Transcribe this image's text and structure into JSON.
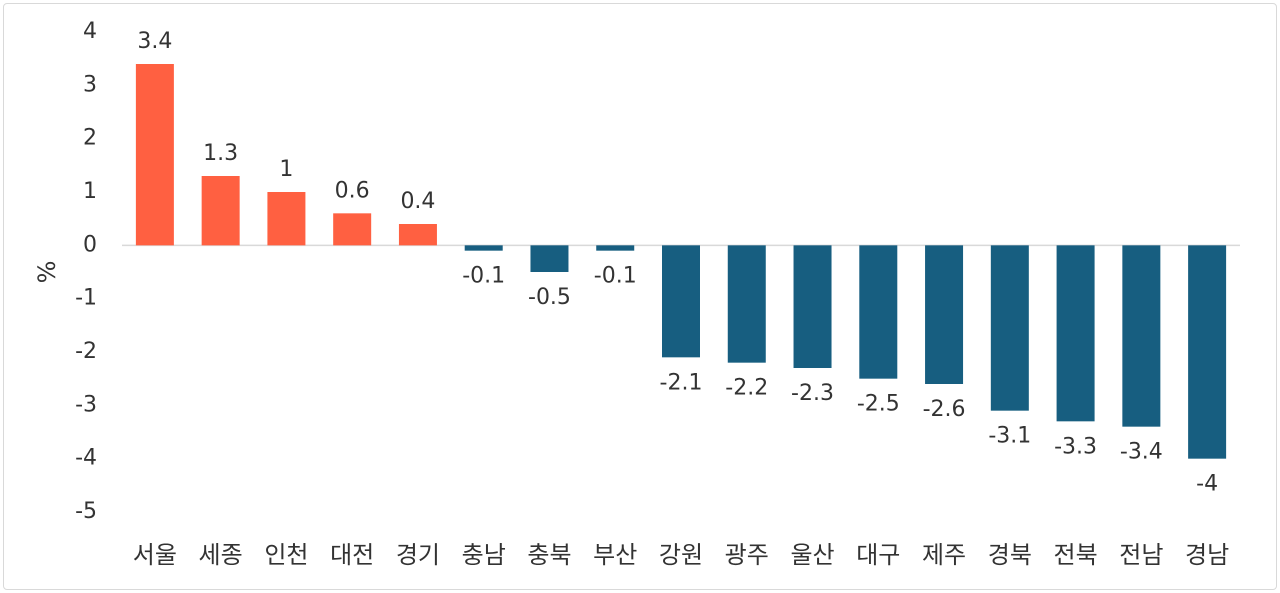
{
  "chart_data": {
    "type": "bar",
    "ylabel": "%",
    "ylim": [
      -5,
      4
    ],
    "yticks": [
      "4",
      "3",
      "2",
      "1",
      "0",
      "-1",
      "-2",
      "-3",
      "-4",
      "-5"
    ],
    "categories": [
      "서울",
      "세종",
      "인천",
      "대전",
      "경기",
      "충남",
      "충북",
      "부산",
      "강원",
      "광주",
      "울산",
      "대구",
      "제주",
      "경북",
      "전북",
      "전남",
      "경남"
    ],
    "values": [
      3.4,
      1.3,
      1,
      0.6,
      0.4,
      -0.1,
      -0.5,
      -0.1,
      -2.1,
      -2.2,
      -2.3,
      -2.5,
      -2.6,
      -3.1,
      -3.3,
      -3.4,
      -4
    ],
    "value_labels": [
      "3.4",
      "1.3",
      "1",
      "0.6",
      "0.4",
      "-0.1",
      "-0.5",
      "-0.1",
      "-2.1",
      "-2.2",
      "-2.3",
      "-2.5",
      "-2.6",
      "-3.1",
      "-3.3",
      "-3.4",
      "-4"
    ],
    "colors": {
      "positive": "#ff6041",
      "negative": "#175e80",
      "axis": "#d9d9d9"
    },
    "grid": false,
    "legend": "none"
  }
}
